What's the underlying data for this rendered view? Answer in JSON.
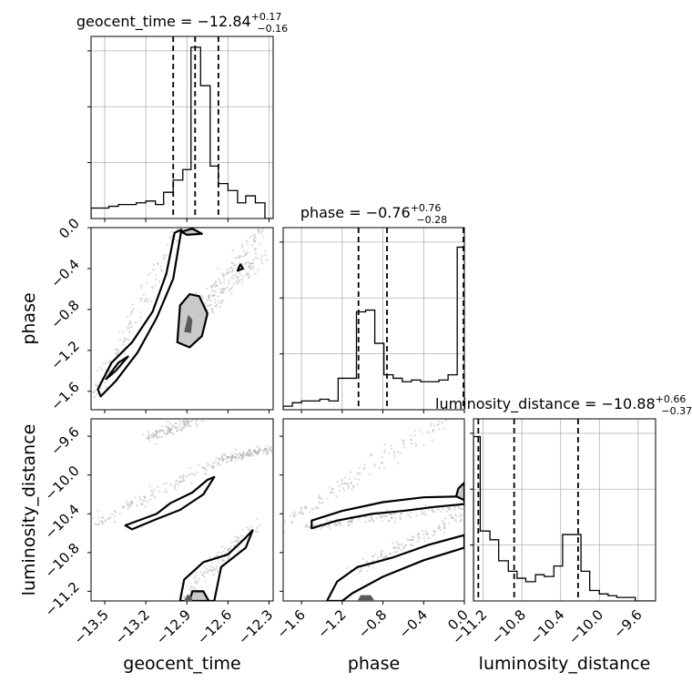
{
  "chart_data": {
    "type": "corner",
    "parameters": [
      "geocent_time",
      "phase",
      "luminosity_distance"
    ],
    "axis_ranges": {
      "geocent_time": [
        -13.6,
        -12.27
      ],
      "phase": [
        -1.78,
        0.0
      ],
      "luminosity_distance": [
        -11.3,
        -9.42
      ]
    },
    "tick_labels": {
      "geocent_time": [
        "−13.5",
        "−13.2",
        "−12.9",
        "−12.6",
        "−12.3"
      ],
      "phase": [
        "−1.6",
        "−1.2",
        "−0.8",
        "−0.4",
        "0.0"
      ],
      "luminosity_distance": [
        "−11.2",
        "−10.8",
        "−10.4",
        "−10.0",
        "−9.6"
      ]
    },
    "titles": {
      "geocent_time": {
        "main": "geocent_time = −12.84",
        "sup": "+0.17",
        "sub": "−0.16"
      },
      "phase": {
        "main": "phase = −0.76",
        "sup": "+0.76",
        "sub": "−0.28"
      },
      "luminosity_distance": {
        "main": "luminosity_distance = −10.88",
        "sup": "+0.66",
        "sub": "−0.37"
      }
    },
    "quantiles": {
      "geocent_time": [
        -13.0,
        -12.84,
        -12.67
      ],
      "phase": [
        -1.04,
        -0.76,
        0.0
      ],
      "luminosity_distance": [
        -11.25,
        -10.88,
        -10.22
      ]
    },
    "histograms": {
      "geocent_time": {
        "edges": [
          -13.6,
          -13.53,
          -13.47,
          -13.4,
          -13.33,
          -13.27,
          -13.2,
          -13.13,
          -13.07,
          -13.0,
          -12.93,
          -12.87,
          -12.8,
          -12.73,
          -12.67,
          -12.6,
          -12.53,
          -12.47,
          -12.4,
          -12.33,
          -12.27
        ],
        "counts": [
          0.06,
          0.06,
          0.07,
          0.08,
          0.08,
          0.09,
          0.1,
          0.08,
          0.15,
          0.22,
          0.28,
          0.98,
          0.76,
          0.3,
          0.2,
          0.16,
          0.09,
          0.13,
          0.09,
          0.0
        ]
      },
      "phase": {
        "edges": [
          -1.78,
          -1.69,
          -1.6,
          -1.51,
          -1.42,
          -1.33,
          -1.24,
          -1.15,
          -1.06,
          -0.97,
          -0.88,
          -0.79,
          -0.7,
          -0.61,
          -0.52,
          -0.43,
          -0.34,
          -0.25,
          -0.16,
          -0.07,
          0.0
        ],
        "counts": [
          0.02,
          0.04,
          0.05,
          0.05,
          0.06,
          0.05,
          0.18,
          0.18,
          0.56,
          0.57,
          0.38,
          0.2,
          0.18,
          0.16,
          0.17,
          0.16,
          0.16,
          0.17,
          0.2,
          0.93
        ]
      },
      "luminosity_distance": {
        "edges": [
          -11.3,
          -11.23,
          -11.13,
          -11.04,
          -10.94,
          -10.85,
          -10.76,
          -10.66,
          -10.57,
          -10.47,
          -10.38,
          -10.29,
          -10.19,
          -10.1,
          -10.0,
          -9.91,
          -9.82,
          -9.72,
          -9.63,
          -9.53,
          -9.42
        ],
        "counts": [
          0.94,
          0.4,
          0.35,
          0.23,
          0.17,
          0.13,
          0.11,
          0.15,
          0.14,
          0.2,
          0.38,
          0.38,
          0.17,
          0.06,
          0.04,
          0.03,
          0.02,
          0.02,
          0.0,
          0.0
        ]
      }
    },
    "grid": true,
    "colors": {
      "contour_line": "#000000",
      "contour_fill": "#c9c9c9",
      "contour_core": "#5a5a5a",
      "scatter": "#9a9a9a",
      "grid": "#b0b0b0"
    }
  }
}
